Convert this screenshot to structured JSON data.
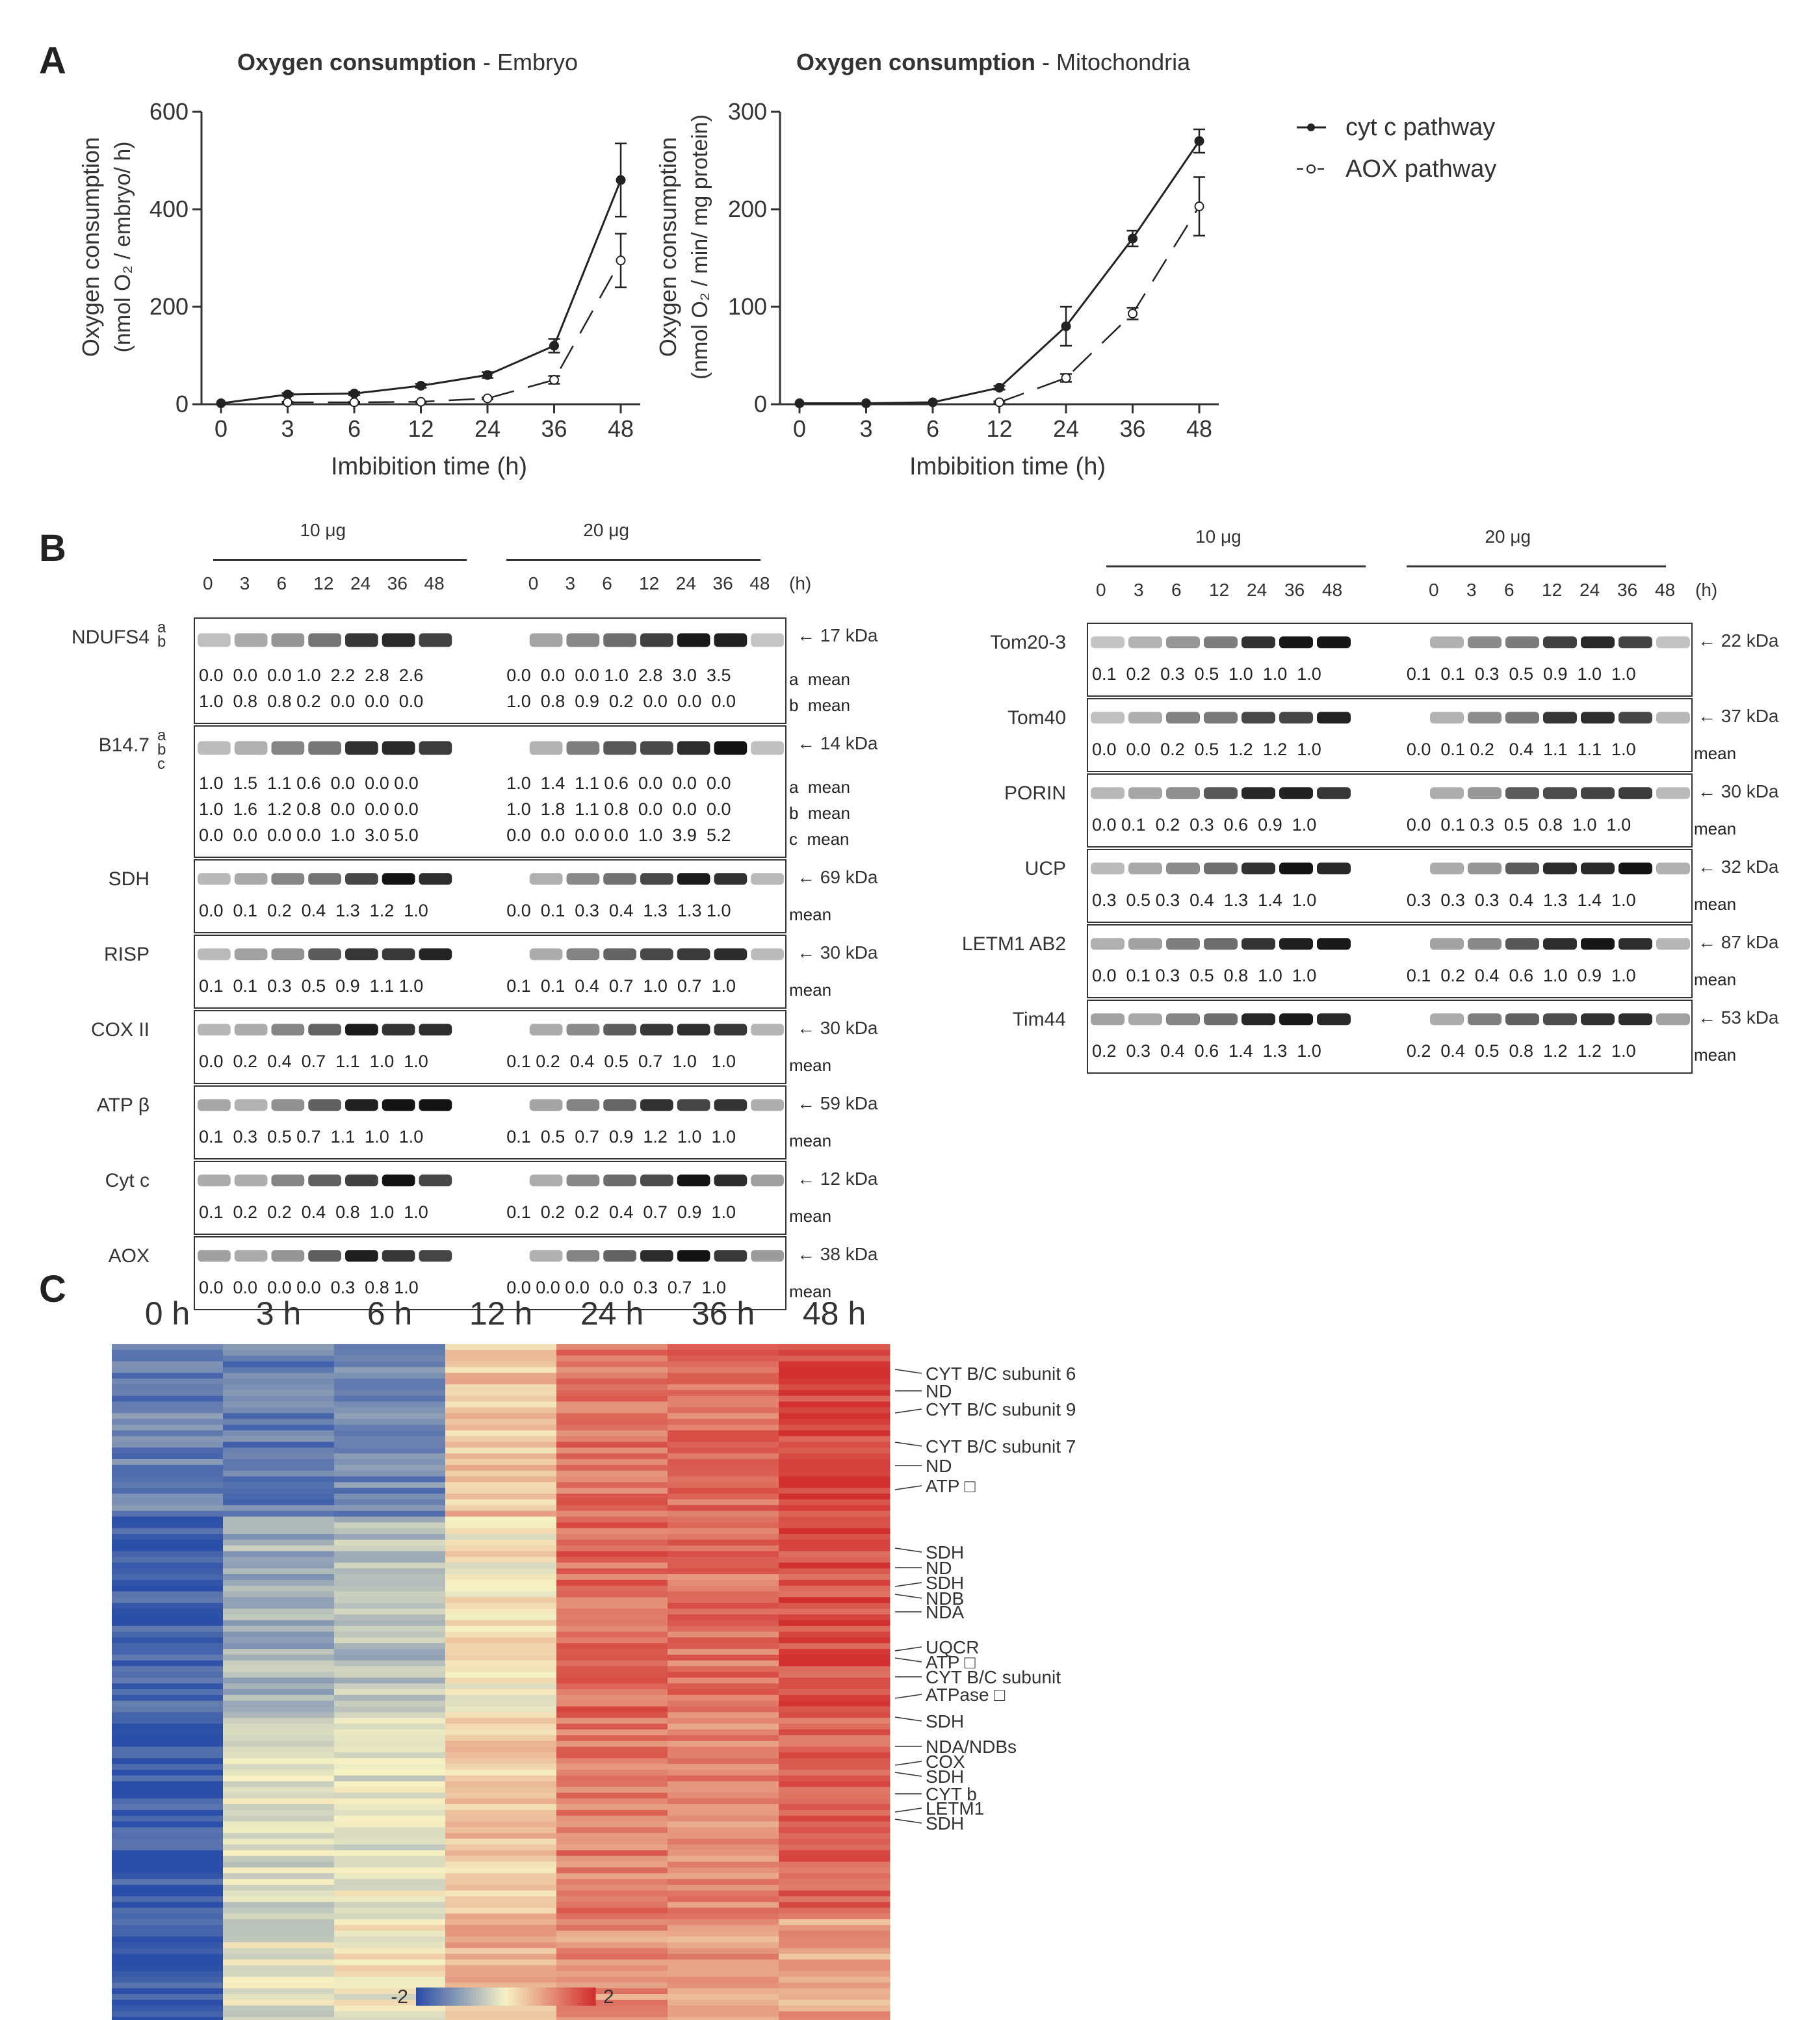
{
  "panels": {
    "a": "A",
    "b": "B",
    "c": "C"
  },
  "panelA": {
    "legend": {
      "cyt": "cyt c pathway",
      "aox": "AOX pathway"
    },
    "charts": [
      {
        "id": "embryo",
        "title_bold": "Oxygen consumption",
        "title_rest": " - Embryo",
        "ylabel_line1": "Oxygen consumption",
        "ylabel_line2": "(nmol O₂ / embryo/ h)",
        "xlabel": "Imbibition time (h)",
        "categories": [
          "0",
          "3",
          "6",
          "12",
          "24",
          "36",
          "48"
        ],
        "yticks": [
          "0",
          "200",
          "400",
          "600"
        ]
      },
      {
        "id": "mito",
        "title_bold": "Oxygen consumption",
        "title_rest": " - Mitochondria",
        "ylabel_line1": "Oxygen consumption",
        "ylabel_line2": "(nmol O₂ / min/ mg protein)",
        "xlabel": "Imbibition time (h)",
        "categories": [
          "0",
          "3",
          "6",
          "12",
          "24",
          "36",
          "48"
        ],
        "yticks": [
          "0",
          "100",
          "200",
          "300"
        ]
      }
    ]
  },
  "chart_data": [
    {
      "type": "line",
      "title": "Oxygen consumption - Embryo",
      "xlabel": "Imbibition time (h)",
      "ylabel": "Oxygen consumption (nmol O2 / embryo/ h)",
      "categories": [
        "0",
        "3",
        "6",
        "12",
        "24",
        "36",
        "48"
      ],
      "ylim": [
        0,
        600
      ],
      "series": [
        {
          "name": "cyt c pathway",
          "values": [
            2,
            20,
            22,
            38,
            60,
            120,
            460
          ],
          "errors": [
            0,
            3,
            3,
            4,
            6,
            14,
            75
          ]
        },
        {
          "name": "AOX pathway",
          "values": [
            null,
            4,
            4,
            5,
            12,
            50,
            295
          ],
          "errors": [
            0,
            1,
            1,
            1,
            2,
            8,
            55
          ]
        }
      ]
    },
    {
      "type": "line",
      "title": "Oxygen consumption - Mitochondria",
      "xlabel": "Imbibition time (h)",
      "ylabel": "Oxygen consumption (nmol O2 / min/ mg protein)",
      "categories": [
        "0",
        "3",
        "6",
        "12",
        "24",
        "36",
        "48"
      ],
      "ylim": [
        0,
        300
      ],
      "series": [
        {
          "name": "cyt c pathway",
          "values": [
            1,
            1,
            2,
            17,
            80,
            170,
            270
          ],
          "errors": [
            0,
            0,
            0,
            2,
            20,
            8,
            12
          ]
        },
        {
          "name": "AOX pathway",
          "values": [
            null,
            null,
            null,
            2,
            27,
            93,
            203
          ],
          "errors": [
            0,
            0,
            0,
            1,
            4,
            6,
            30
          ]
        }
      ]
    },
    {
      "type": "heatmap",
      "title": "",
      "columns": [
        "0 h",
        "3 h",
        "6 h",
        "12 h",
        "24 h",
        "36 h",
        "48 h"
      ],
      "colorbar": {
        "min": "-2",
        "max": "2",
        "colors": [
          "#2b4fa8",
          "#f6f2c4",
          "#d22f2f"
        ]
      },
      "row_labels": [
        "CYT B/C subunit 6",
        "ND",
        "CYT B/C subunit 9",
        "CYT B/C subunit 7",
        "ND",
        "ATP □",
        "SDH",
        "ND",
        "SDH",
        "NDB",
        "NDA",
        "UQCR",
        "ATP □",
        "CYT B/C subunit",
        "ATPase □",
        "SDH",
        "NDA/NDBs",
        "COX",
        "SDH",
        "CYT b",
        "LETM1",
        "SDH"
      ]
    }
  ],
  "panelB": {
    "left": {
      "load1": "10 μg",
      "load2": "20 μg",
      "times": [
        "0",
        "3",
        "6",
        "12",
        "24",
        "36",
        "48"
      ],
      "hour_unit": "(h)",
      "blots": [
        {
          "name": "NDUFS4",
          "sub": [
            "a",
            "b"
          ],
          "kda": "17 kDa",
          "rows": [
            {
              "l": "0.0  0.0  0.0 1.0  2.2  2.8  2.6",
              "r": "0.0  0.0  0.0 1.0  2.8  3.0  3.5",
              "tag": "a  mean"
            },
            {
              "l": "1.0  0.8  0.8 0.2  0.0  0.0  0.0",
              "r": "1.0  0.8  0.9  0.2  0.0  0.0  0.0",
              "tag": "b  mean"
            }
          ]
        },
        {
          "name": "B14.7",
          "sub": [
            "a",
            "b",
            "c"
          ],
          "kda": "14 kDa",
          "rows": [
            {
              "l": "1.0  1.5  1.1 0.6  0.0  0.0 0.0",
              "r": "1.0  1.4  1.1 0.6  0.0  0.0  0.0",
              "tag": "a  mean"
            },
            {
              "l": "1.0  1.6  1.2 0.8  0.0  0.0 0.0",
              "r": "1.0  1.8  1.1 0.8  0.0  0.0  0.0",
              "tag": "b  mean"
            },
            {
              "l": "0.0  0.0  0.0 0.0  1.0  3.0 5.0",
              "r": "0.0  0.0  0.0 0.0  1.0  3.9  5.2",
              "tag": "c  mean"
            }
          ]
        },
        {
          "name": "SDH",
          "kda": "69 kDa",
          "rows": [
            {
              "l": "0.0  0.1  0.2  0.4  1.3  1.2  1.0",
              "r": "0.0  0.1  0.3  0.4  1.3  1.3 1.0",
              "tag": "mean"
            }
          ]
        },
        {
          "name": "RISP",
          "kda": "30 kDa",
          "rows": [
            {
              "l": "0.1  0.1  0.3  0.5  0.9  1.1 1.0",
              "r": "0.1  0.1  0.4  0.7  1.0  0.7  1.0",
              "tag": "mean"
            }
          ]
        },
        {
          "name": "COX II",
          "kda": "30 kDa",
          "rows": [
            {
              "l": "0.0  0.2  0.4  0.7  1.1  1.0  1.0",
              "r": "0.1 0.2  0.4  0.5  0.7  1.0   1.0",
              "tag": "mean"
            }
          ]
        },
        {
          "name": "ATP β",
          "kda": "59 kDa",
          "rows": [
            {
              "l": "0.1  0.3  0.5 0.7  1.1  1.0  1.0",
              "r": "0.1  0.5  0.7  0.9  1.2  1.0  1.0",
              "tag": "mean"
            }
          ]
        },
        {
          "name": "Cyt c",
          "kda": "12 kDa",
          "rows": [
            {
              "l": "0.1  0.2  0.2  0.4  0.8  1.0  1.0",
              "r": "0.1  0.2  0.2  0.4  0.7  0.9  1.0",
              "tag": "mean"
            }
          ]
        },
        {
          "name": "AOX",
          "kda": "38 kDa",
          "rows": [
            {
              "l": "0.0  0.0  0.0 0.0  0.3  0.8 1.0",
              "r": "0.0 0.0 0.0  0.0  0.3  0.7  1.0",
              "tag": "mean"
            }
          ]
        }
      ]
    },
    "right": {
      "load1": "10 μg",
      "load2": "20 μg",
      "times": [
        "0",
        "3",
        "6",
        "12",
        "24",
        "36",
        "48"
      ],
      "hour_unit": "(h)",
      "blots": [
        {
          "name": "Tom20-3",
          "kda": "22 kDa",
          "rows": [
            {
              "l": "0.1  0.2  0.3  0.5  1.0  1.0  1.0",
              "r": "0.1  0.1  0.3  0.5  0.9  1.0  1.0",
              "tag": ""
            }
          ]
        },
        {
          "name": "Tom40",
          "kda": "37 kDa",
          "rows": [
            {
              "l": "0.0  0.0  0.2  0.5  1.2  1.2  1.0",
              "r": "0.0  0.1 0.2   0.4  1.1  1.1  1.0",
              "tag": "mean"
            }
          ]
        },
        {
          "name": "PORIN",
          "kda": "30 kDa",
          "rows": [
            {
              "l": "0.0 0.1  0.2  0.3  0.6  0.9  1.0",
              "r": "0.0  0.1 0.3  0.5  0.8  1.0  1.0",
              "tag": "mean"
            }
          ]
        },
        {
          "name": "UCP",
          "kda": "32 kDa",
          "rows": [
            {
              "l": "0.3  0.5 0.3  0.4  1.3  1.4  1.0",
              "r": "0.3  0.3  0.3  0.4  1.3  1.4  1.0",
              "tag": "mean"
            }
          ]
        },
        {
          "name": "LETM1 AB2",
          "kda": "87 kDa",
          "rows": [
            {
              "l": "0.0  0.1 0.3  0.5  0.8  1.0  1.0",
              "r": "0.1  0.2  0.4  0.6  1.0  0.9  1.0",
              "tag": "mean"
            }
          ]
        },
        {
          "name": "Tim44",
          "kda": "53 kDa",
          "rows": [
            {
              "l": "0.2  0.3  0.4  0.6  1.4  1.3  1.0",
              "r": "0.2  0.4  0.5  0.8  1.2  1.2  1.0",
              "tag": "mean"
            }
          ]
        }
      ]
    }
  }
}
